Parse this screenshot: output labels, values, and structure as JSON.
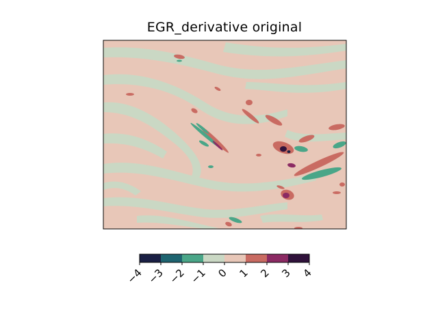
{
  "chart_data": {
    "type": "heatmap",
    "title": "EGR_derivative original",
    "xlabel": "",
    "ylabel": "",
    "grid": false,
    "colorbar": {
      "orientation": "horizontal",
      "placement": "bottom",
      "levels": [
        -4,
        -3,
        -2,
        -1,
        0,
        1,
        2,
        3,
        4
      ],
      "tick_labels": [
        "−4",
        "−3",
        "−2",
        "−1",
        "0",
        "1",
        "2",
        "3",
        "4"
      ],
      "bins": [
        {
          "range": [
            -4,
            -3
          ],
          "color": "#1a1f44"
        },
        {
          "range": [
            -3,
            -2
          ],
          "color": "#1e6470"
        },
        {
          "range": [
            -2,
            -1
          ],
          "color": "#4aa688"
        },
        {
          "range": [
            -1,
            0
          ],
          "color": "#cad8c4"
        },
        {
          "range": [
            0,
            1
          ],
          "color": "#e8c7b8"
        },
        {
          "range": [
            1,
            2
          ],
          "color": "#c96b62"
        },
        {
          "range": [
            2,
            3
          ],
          "color": "#8b2a63"
        },
        {
          "range": [
            3,
            4
          ],
          "color": "#30123b"
        }
      ]
    },
    "field_features": [
      {
        "label": "background",
        "value_range": [
          -1,
          1
        ]
      },
      {
        "label": "elongated positive streak (center-left)",
        "value_range": [
          1,
          3
        ]
      },
      {
        "label": "negative streak (center-left)",
        "value_range": [
          -3,
          -1
        ]
      },
      {
        "label": "positive band (right)",
        "value_range": [
          1,
          3
        ]
      },
      {
        "label": "negative band (right)",
        "value_range": [
          -3,
          -1
        ]
      },
      {
        "label": "strong maximum (right-center)",
        "value_range": [
          3,
          4
        ]
      },
      {
        "label": "strong minimum (right-center)",
        "value_range": [
          -4,
          -3
        ]
      },
      {
        "label": "isolated maximum (lower right)",
        "value_range": [
          2,
          3
        ]
      },
      {
        "label": "negative streak (bottom)",
        "value_range": [
          -2,
          -1
        ]
      }
    ]
  }
}
